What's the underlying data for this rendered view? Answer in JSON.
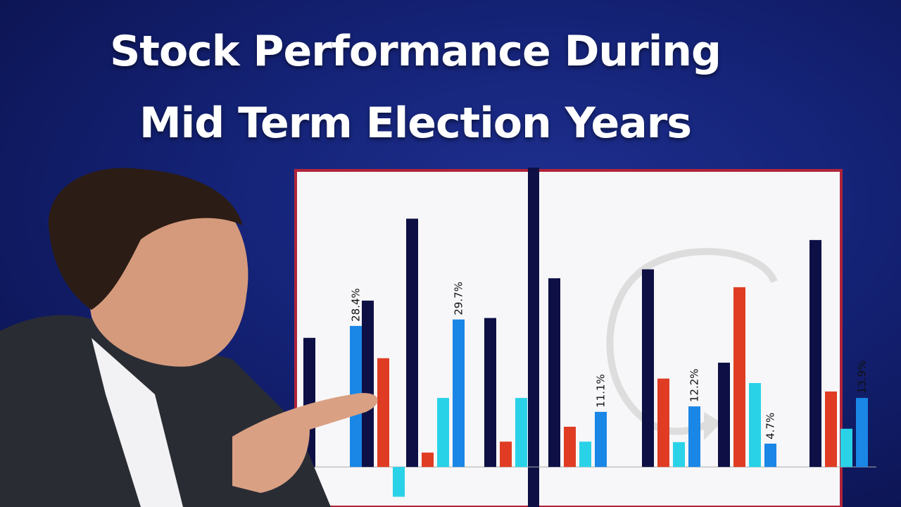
{
  "title": [
    "Stock Performance During",
    "Mid Term Election Years"
  ],
  "chart_data": {
    "type": "bar",
    "categories": [
      null,
      null,
      null,
      null,
      null,
      null,
      null,
      null
    ],
    "ylim": [
      -6.5,
      60
    ],
    "series": [
      {
        "color": "#0d0f45",
        "values": [
          26,
          33.5,
          50,
          30,
          38,
          39.8,
          21,
          45.7
        ]
      },
      {
        "color": "#e03c24",
        "values": [
          null,
          21.9,
          2.9,
          5.1,
          8.1,
          17.8,
          36.2,
          15.2
        ]
      },
      {
        "color": "#2ad2e8",
        "values": [
          null,
          -6,
          13.9,
          13.9,
          5.1,
          5,
          16.9,
          7.7
        ]
      },
      {
        "color": "#1a86e6",
        "values": [
          28.4,
          null,
          29.7,
          null,
          11.1,
          12.2,
          4.7,
          13.9
        ],
        "value_labels": [
          "28.4%",
          null,
          "29.7%",
          null,
          "11.1%",
          "12.2%",
          "4.7%",
          "13.9%"
        ]
      }
    ]
  }
}
